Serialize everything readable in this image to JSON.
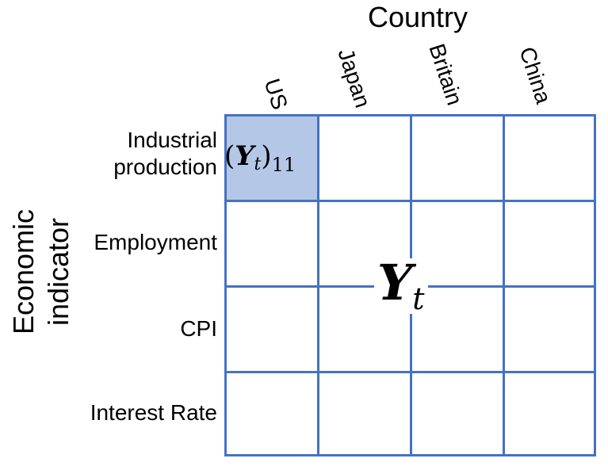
{
  "column_axis": {
    "title": "Country",
    "labels": [
      "US",
      "Japan",
      "Britain",
      "China"
    ]
  },
  "row_axis": {
    "title_lines": [
      "Economic",
      "indicator"
    ],
    "labels": [
      [
        "Industrial",
        "production"
      ],
      [
        "Employment"
      ],
      [
        "CPI"
      ],
      [
        "Interest Rate"
      ]
    ]
  },
  "matrix": {
    "symbol": "Y",
    "subscript": "t",
    "highlighted_cell": {
      "row": 1,
      "col": 1,
      "label": "(Y_t)_11",
      "index": "11"
    }
  },
  "colors": {
    "grid_line": "#4472c4",
    "highlight_fill": "#b4c7e7"
  }
}
